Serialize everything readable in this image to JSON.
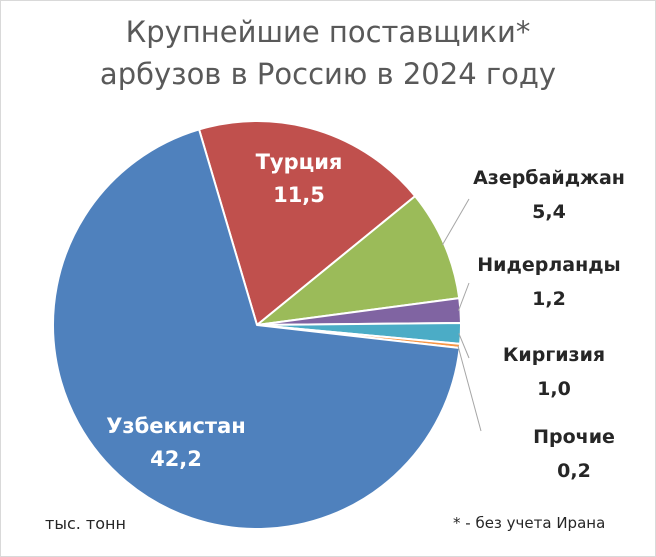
{
  "chart_data": {
    "type": "pie",
    "title": [
      "Крупнейшие поставщики*",
      "арбузов в Россию в 2024 году"
    ],
    "unit_label": "тыс. тонн",
    "footnote": "* - без учета Ирана",
    "slices": [
      {
        "name": "Турция",
        "value": 11.5,
        "value_label": "11,5",
        "color": "#C0504D"
      },
      {
        "name": "Азербайджан",
        "value": 5.4,
        "value_label": "5,4",
        "color": "#9BBB59"
      },
      {
        "name": "Нидерланды",
        "value": 1.2,
        "value_label": "1,2",
        "color": "#8064A2"
      },
      {
        "name": "Киргизия",
        "value": 1.0,
        "value_label": "1,0",
        "color": "#4BACC6"
      },
      {
        "name": "Прочие",
        "value": 0.2,
        "value_label": "0,2",
        "color": "#F79646"
      },
      {
        "name": "Узбекистан",
        "value": 42.2,
        "value_label": "42,2",
        "color": "#4F81BD"
      }
    ]
  }
}
